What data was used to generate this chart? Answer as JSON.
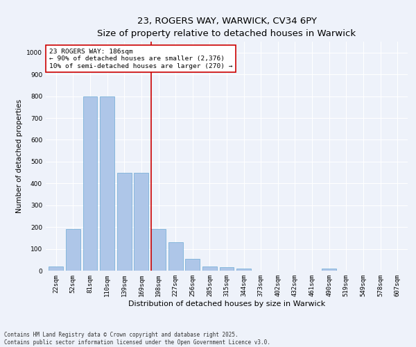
{
  "title": "23, ROGERS WAY, WARWICK, CV34 6PY",
  "subtitle": "Size of property relative to detached houses in Warwick",
  "xlabel": "Distribution of detached houses by size in Warwick",
  "ylabel": "Number of detached properties",
  "categories": [
    "22sqm",
    "52sqm",
    "81sqm",
    "110sqm",
    "139sqm",
    "169sqm",
    "198sqm",
    "227sqm",
    "256sqm",
    "285sqm",
    "315sqm",
    "344sqm",
    "373sqm",
    "402sqm",
    "432sqm",
    "461sqm",
    "490sqm",
    "519sqm",
    "549sqm",
    "578sqm",
    "607sqm"
  ],
  "values": [
    20,
    190,
    800,
    800,
    450,
    450,
    190,
    130,
    55,
    20,
    15,
    10,
    0,
    0,
    0,
    0,
    10,
    0,
    0,
    0,
    0
  ],
  "bar_color": "#aec6e8",
  "bar_edge_color": "#6aaad4",
  "vline_x_index": 6,
  "vline_color": "#cc0000",
  "annotation_text": "23 ROGERS WAY: 186sqm\n← 90% of detached houses are smaller (2,376)\n10% of semi-detached houses are larger (270) →",
  "annotation_box_color": "#ffffff",
  "annotation_box_edge": "#cc0000",
  "ylim": [
    0,
    1050
  ],
  "yticks": [
    0,
    100,
    200,
    300,
    400,
    500,
    600,
    700,
    800,
    900,
    1000
  ],
  "background_color": "#eef2fa",
  "grid_color": "#ffffff",
  "footer": "Contains HM Land Registry data © Crown copyright and database right 2025.\nContains public sector information licensed under the Open Government Licence v3.0.",
  "title_fontsize": 9.5,
  "ylabel_fontsize": 7.5,
  "xlabel_fontsize": 8,
  "tick_fontsize": 6.5,
  "annotation_fontsize": 6.8,
  "footer_fontsize": 5.5
}
